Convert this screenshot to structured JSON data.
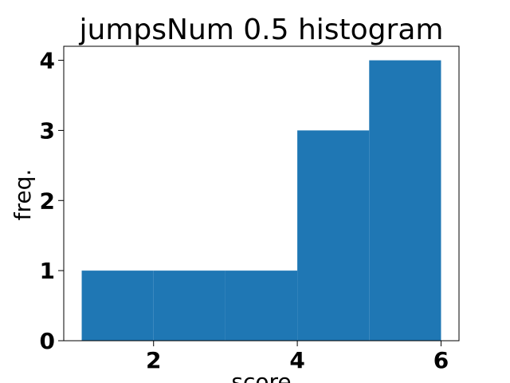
{
  "chart_data": {
    "type": "bar",
    "title": "jumpsNum 0.5 histogram",
    "xlabel": "score",
    "ylabel": "freq.",
    "bins": [
      {
        "start": 1,
        "end": 2,
        "count": 1
      },
      {
        "start": 2,
        "end": 3,
        "count": 1
      },
      {
        "start": 3,
        "end": 4,
        "count": 1
      },
      {
        "start": 4,
        "end": 5,
        "count": 3
      },
      {
        "start": 5,
        "end": 6,
        "count": 4
      }
    ],
    "xlim": [
      0.75,
      6.25
    ],
    "ylim": [
      0,
      4.2
    ],
    "xticks": [
      2,
      4,
      6
    ],
    "yticks": [
      0,
      1,
      2,
      3,
      4
    ],
    "bar_color": "#1f77b4",
    "grid": false
  }
}
